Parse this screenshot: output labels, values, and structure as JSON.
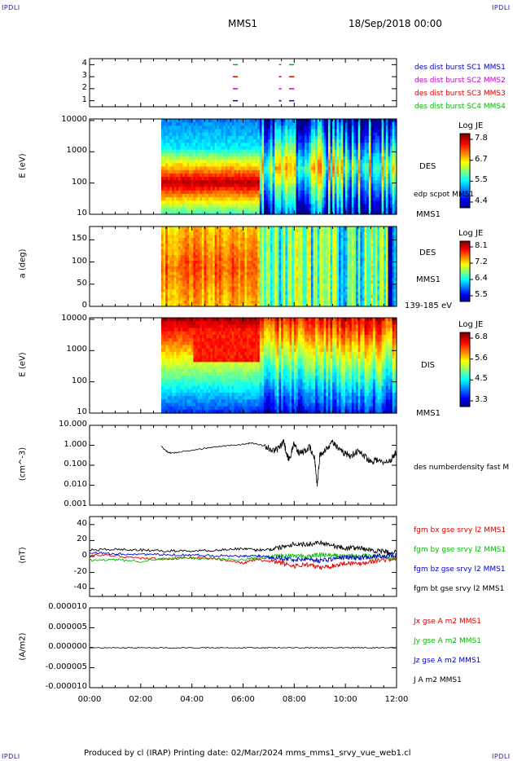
{
  "corners": {
    "tl": "IPDLI",
    "tr": "IPDLI",
    "bl": "IPDLI",
    "br": "IPDLI"
  },
  "header": {
    "mission": "MMS1",
    "date": "18/Sep/2018 00:00"
  },
  "footer": "Produced by cl (IRAP)   Printing date: 02/Mar/2024   mms_mms1_srvy_vue_web1.cl",
  "colors": {
    "mms1": "#0000cc",
    "mms2": "#cc00cc",
    "mms3": "#dd0000",
    "mms4": "#00bb00",
    "black": "#000000"
  },
  "chart_data": [
    {
      "id": "burst",
      "type": "scatter",
      "ylim": [
        0.5,
        4.5
      ],
      "yticks": [
        "1",
        "2",
        "3",
        "4"
      ],
      "legend": [
        "des dist burst SC1 MMS1",
        "des dist burst SC2 MMS2",
        "des dist burst SC3 MMS3",
        "des dist burst SC4 MMS4"
      ],
      "bursts": [
        [
          5.6,
          5.8
        ],
        [
          7.4,
          7.5
        ],
        [
          7.8,
          8.0
        ]
      ]
    },
    {
      "id": "des_energy",
      "type": "heatmap",
      "ylabel": "E (eV)",
      "yticks": [
        "10",
        "100",
        "1000",
        "10000"
      ],
      "instrument": "DES",
      "extra": "edp scpot MMS1",
      "sc": "MMS1",
      "colorbar": {
        "title": "Log JE",
        "ticks": [
          "7.8",
          "6.7",
          "5.5",
          "4.4"
        ]
      },
      "start_hours": 2.8
    },
    {
      "id": "des_pitch",
      "type": "heatmap",
      "ylabel": "a (deg)",
      "yticks": [
        "0",
        "50",
        "100",
        "150"
      ],
      "instrument": "DES",
      "sc": "MMS1",
      "energy": "139-185 eV",
      "colorbar": {
        "title": "Log JE",
        "ticks": [
          "8.1",
          "7.2",
          "6.4",
          "5.5"
        ]
      },
      "start_hours": 2.8
    },
    {
      "id": "dis_energy",
      "type": "heatmap",
      "ylabel": "E (eV)",
      "yticks": [
        "10",
        "100",
        "1000",
        "10000"
      ],
      "instrument": "DIS",
      "sc": "MMS1",
      "colorbar": {
        "title": "Log JE",
        "ticks": [
          "6.8",
          "5.6",
          "4.5",
          "3.3"
        ]
      },
      "start_hours": 2.8
    },
    {
      "id": "density",
      "type": "line",
      "ylabel": "(cm^-3)",
      "yticks": [
        "0.001",
        "0.010",
        "0.100",
        "1.000",
        "10.000"
      ],
      "legend": "des numberdensity fast M",
      "x": [
        2.8,
        3.0,
        3.2,
        3.5,
        4.0,
        4.5,
        5.0,
        5.5,
        6.0,
        6.3,
        6.6,
        6.9,
        7.2,
        7.4,
        7.6,
        7.7,
        7.8,
        8.0,
        8.2,
        8.4,
        8.6,
        8.8,
        8.9,
        9.0,
        9.2,
        9.5,
        9.8,
        10.0,
        10.2,
        10.5,
        10.8,
        11.0,
        11.2,
        11.5,
        11.8,
        12.0
      ],
      "y": [
        0.9,
        0.5,
        0.4,
        0.45,
        0.55,
        0.7,
        0.85,
        1.0,
        1.1,
        1.3,
        1.1,
        0.9,
        0.5,
        0.7,
        1.5,
        0.3,
        0.2,
        1.2,
        0.4,
        0.5,
        0.8,
        0.2,
        0.01,
        0.3,
        0.6,
        1.5,
        0.5,
        0.4,
        0.3,
        0.5,
        0.25,
        0.15,
        0.2,
        0.12,
        0.2,
        0.5
      ]
    },
    {
      "id": "fgm",
      "type": "line",
      "ylabel": "(nT)",
      "yticks": [
        "-40",
        "-20",
        "0",
        "20",
        "40"
      ],
      "ylim": [
        -50,
        50
      ],
      "legend": [
        "fgm bx gse srvy l2 MMS1",
        "fgm by gse srvy l2 MMS1",
        "fgm bz gse srvy l2 MMS1",
        "fgm bt gse srvy l2 MMS1"
      ],
      "x": [
        0,
        1,
        2,
        3,
        4,
        5,
        6,
        6.5,
        7,
        7.5,
        8,
        8.5,
        9,
        9.5,
        10,
        10.5,
        11,
        11.5,
        12
      ],
      "series": [
        {
          "name": "bx",
          "values": [
            2,
            1,
            -2,
            -3,
            -1,
            -3,
            -8,
            -4,
            -6,
            -8,
            -12,
            -10,
            -14,
            -12,
            -8,
            -9,
            -6,
            -4,
            -3
          ]
        },
        {
          "name": "by",
          "values": [
            -5,
            -4,
            -6,
            -3,
            -2,
            -3,
            -4,
            -2,
            -1,
            0,
            1,
            0,
            2,
            1,
            0,
            1,
            0,
            0,
            -1
          ]
        },
        {
          "name": "bz",
          "values": [
            5,
            3,
            3,
            2,
            2,
            1,
            0,
            1,
            0,
            -2,
            -4,
            -3,
            -5,
            -3,
            -1,
            -2,
            0,
            1,
            2
          ]
        },
        {
          "name": "bt",
          "values": [
            8,
            9,
            8,
            7,
            7,
            8,
            10,
            8,
            9,
            12,
            16,
            15,
            18,
            14,
            10,
            11,
            8,
            6,
            5
          ]
        }
      ]
    },
    {
      "id": "current",
      "type": "line",
      "ylabel": "(A/m2)",
      "yticks": [
        "-0.000010",
        "-0.000005",
        "0.000000",
        "0.000005",
        "0.000010"
      ],
      "ylim": [
        -1e-05,
        1e-05
      ],
      "legend": [
        "Jx gse A m2 MMS1",
        "Jy gse A m2 MMS1",
        "Jz gse A m2 MMS1",
        "J A m2 MMS1"
      ]
    }
  ],
  "xaxis": {
    "ticks": [
      "00:00",
      "02:00",
      "04:00",
      "06:00",
      "08:00",
      "10:00",
      "12:00"
    ],
    "range": [
      0,
      12
    ]
  }
}
